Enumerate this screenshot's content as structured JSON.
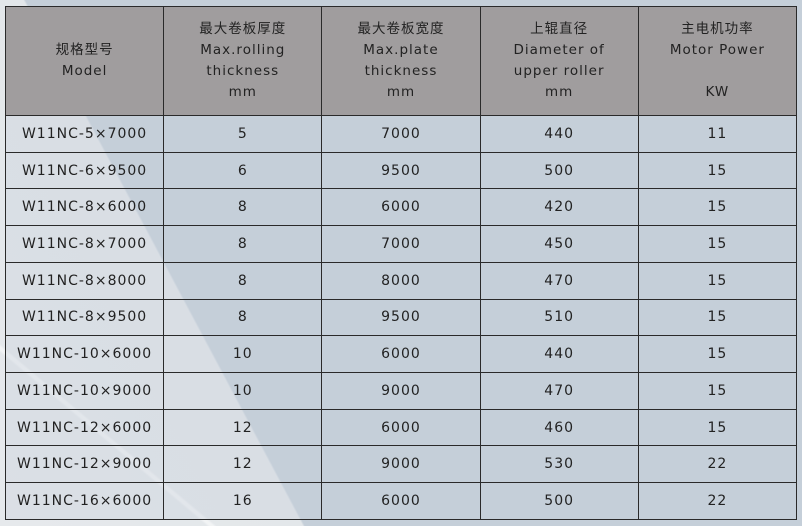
{
  "columns": [
    {
      "zh": "规格型号",
      "en1": "Model",
      "en2": "",
      "unit": ""
    },
    {
      "zh": "最大卷板厚度",
      "en1": "Max.rolling",
      "en2": "thickness",
      "unit": "mm"
    },
    {
      "zh": "最大卷板宽度",
      "en1": "Max.plate",
      "en2": "thickness",
      "unit": "mm"
    },
    {
      "zh": "上辊直径",
      "en1": "Diameter of",
      "en2": "upper roller",
      "unit": "mm"
    },
    {
      "zh": "主电机功率",
      "en1": "Motor Power",
      "en2": "",
      "unit": "KW"
    }
  ],
  "rows": [
    [
      "W11NC-5×7000",
      "5",
      "7000",
      "440",
      "11"
    ],
    [
      "W11NC-6×9500",
      "6",
      "9500",
      "500",
      "15"
    ],
    [
      "W11NC-8×6000",
      "8",
      "6000",
      "420",
      "15"
    ],
    [
      "W11NC-8×7000",
      "8",
      "7000",
      "450",
      "15"
    ],
    [
      "W11NC-8×8000",
      "8",
      "8000",
      "470",
      "15"
    ],
    [
      "W11NC-8×9500",
      "8",
      "9500",
      "510",
      "15"
    ],
    [
      "W11NC-10×6000",
      "10",
      "6000",
      "440",
      "15"
    ],
    [
      "W11NC-10×9000",
      "10",
      "9000",
      "470",
      "15"
    ],
    [
      "W11NC-12×6000",
      "12",
      "6000",
      "460",
      "15"
    ],
    [
      "W11NC-12×9000",
      "12",
      "9000",
      "530",
      "22"
    ],
    [
      "W11NC-16×6000",
      "16",
      "6000",
      "500",
      "22"
    ]
  ]
}
